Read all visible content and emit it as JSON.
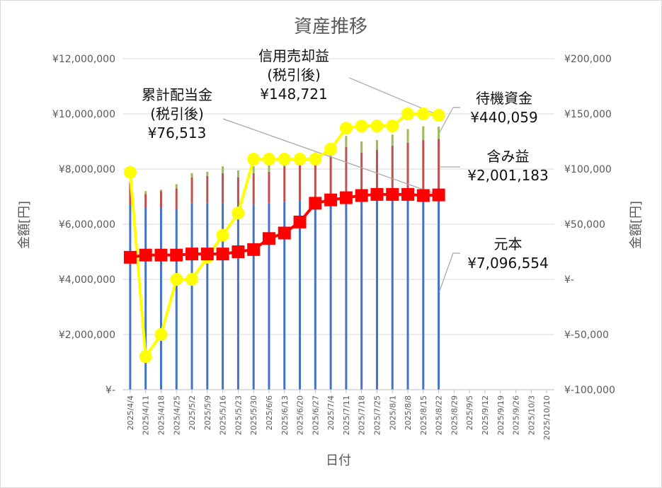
{
  "chart_data": {
    "type": "bar",
    "title": "資産推移",
    "xlabel": "日付",
    "ylabel": "金額[円]",
    "y2label": "金額[円]",
    "ylim": [
      0,
      12000000
    ],
    "y2lim": [
      -100000,
      200000
    ],
    "y_ticks": [
      "¥-",
      "¥2,000,000",
      "¥4,000,000",
      "¥6,000,000",
      "¥8,000,000",
      "¥10,000,000",
      "¥12,000,000"
    ],
    "y2_ticks": [
      "¥-100,000",
      "¥-50,000",
      "¥-",
      "¥50,000",
      "¥100,000",
      "¥150,000",
      "¥200,000"
    ],
    "grid": true,
    "categories": [
      "2025/4/4",
      "2025/4/11",
      "2025/4/18",
      "2025/4/25",
      "2025/5/2",
      "2025/5/9",
      "2025/5/16",
      "2025/5/23",
      "2025/5/30",
      "2025/6/6",
      "2025/6/13",
      "2025/6/20",
      "2025/6/27",
      "2025/7/4",
      "2025/7/11",
      "2025/7/18",
      "2025/7/25",
      "2025/8/1",
      "2025/8/8",
      "2025/8/15",
      "2025/8/22",
      "2025/8/29",
      "2025/9/5",
      "2025/9/12",
      "2025/9/19",
      "2025/9/26",
      "2025/10/3",
      "2025/10/10"
    ],
    "stacked_series": [
      {
        "name": "元本",
        "color": "#4472c4",
        "values": [
          6700000,
          6600000,
          6600000,
          6550000,
          6750000,
          6750000,
          6750000,
          6700000,
          6700000,
          6750000,
          6800000,
          6850000,
          6900000,
          6950000,
          7000000,
          7000000,
          7000000,
          7050000,
          7050000,
          7050000,
          7096554,
          null,
          null,
          null,
          null,
          null,
          null,
          null
        ]
      },
      {
        "name": "含み益",
        "color": "#c0504d",
        "values": [
          800000,
          500000,
          600000,
          750000,
          950000,
          1000000,
          1100000,
          1000000,
          1150000,
          1150000,
          1300000,
          1300000,
          1400000,
          1500000,
          1800000,
          1600000,
          1700000,
          1800000,
          1900000,
          2000000,
          2001183,
          null,
          null,
          null,
          null,
          null,
          null,
          null
        ]
      },
      {
        "name": "待機資金",
        "color": "#9bbb59",
        "values": [
          30000,
          100000,
          50000,
          150000,
          150000,
          150000,
          250000,
          250000,
          250000,
          250000,
          200000,
          300000,
          300000,
          350000,
          400000,
          400000,
          350000,
          400000,
          500000,
          500000,
          440059,
          null,
          null,
          null,
          null,
          null,
          null,
          null
        ]
      }
    ],
    "line_series": [
      {
        "name": "信用売却益",
        "axis": "y2",
        "color": "#ffff00",
        "marker": "circle",
        "values": [
          97000,
          -70000,
          -50000,
          0,
          0,
          20000,
          40000,
          60000,
          109000,
          109000,
          109000,
          109000,
          109000,
          118000,
          137000,
          139000,
          139000,
          139000,
          150000,
          150000,
          148721,
          null,
          null,
          null,
          null,
          null,
          null,
          null
        ]
      },
      {
        "name": "累計配当金",
        "axis": "y2",
        "color": "#ff0000",
        "marker": "square",
        "values": [
          20000,
          22000,
          22000,
          22000,
          23000,
          23000,
          23000,
          25000,
          27000,
          37000,
          42000,
          52000,
          69000,
          72000,
          74000,
          76000,
          77000,
          77000,
          77000,
          76000,
          76513,
          null,
          null,
          null,
          null,
          null,
          null,
          null
        ]
      }
    ],
    "annotations": [
      {
        "id": "shinyo",
        "lines": [
          "信用売却益",
          "(税引後)",
          "¥148,721"
        ]
      },
      {
        "id": "haito",
        "lines": [
          "累計配当金",
          "(税引後)",
          "¥76,513"
        ]
      },
      {
        "id": "taiki",
        "lines": [
          "待機資金",
          "¥440,059"
        ]
      },
      {
        "id": "fukumi",
        "lines": [
          "含み益",
          "¥2,001,183"
        ]
      },
      {
        "id": "ganpon",
        "lines": [
          "元本",
          "¥7,096,554"
        ]
      }
    ]
  }
}
